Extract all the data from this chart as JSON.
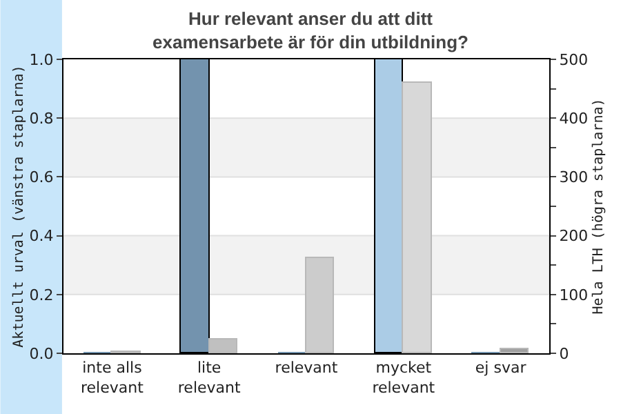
{
  "chart_data": {
    "type": "bar",
    "title": "Hur relevant anser du att ditt\nexamensarbete är för din utbildning?",
    "categories": [
      "inte alls\nrelevant",
      "lite\nrelevant",
      "relevant",
      "mycket\nrelevant",
      "ej svar"
    ],
    "ylabel": "Aktuellt urval (vänstra staplarna)",
    "y2label": "Hela LTH (högra staplarna)",
    "series": [
      {
        "colors": [
          "#7393ae",
          "#7393ae",
          "#7393ae",
          "#abcce6",
          "#7393ae"
        ],
        "values": [
          0,
          1,
          0,
          1,
          0
        ]
      },
      {
        "axis": "y2",
        "colors": [
          "#a0a0a0",
          "#c0c0c0",
          "#cccccc",
          "#d8d8d8",
          "#a0a0a0"
        ],
        "values": [
          3,
          23,
          162,
          459,
          6
        ]
      }
    ],
    "ylim": [
      0,
      1
    ],
    "yticks": [
      {
        "value": 0,
        "label": "0.0"
      },
      0.2,
      0.4,
      0.6,
      0.8,
      {
        "value": 1,
        "label": "1.0"
      }
    ],
    "y2lim": [
      0,
      500
    ],
    "y2ticks": [
      0,
      {
        "value": 50,
        "label": null
      },
      100,
      {
        "value": 150,
        "label": null
      },
      200,
      {
        "value": 250,
        "label": null
      },
      300,
      {
        "value": 350,
        "label": null
      },
      400,
      {
        "value": 450,
        "label": null
      },
      500
    ],
    "bands": [
      {
        "axis": "y",
        "from": 0.2,
        "to": 0.4,
        "color": "#f2f2f2"
      },
      {
        "axis": "y",
        "from": 0.6,
        "to": 0.8,
        "color": "#f2f2f2"
      }
    ],
    "grid": false
  }
}
